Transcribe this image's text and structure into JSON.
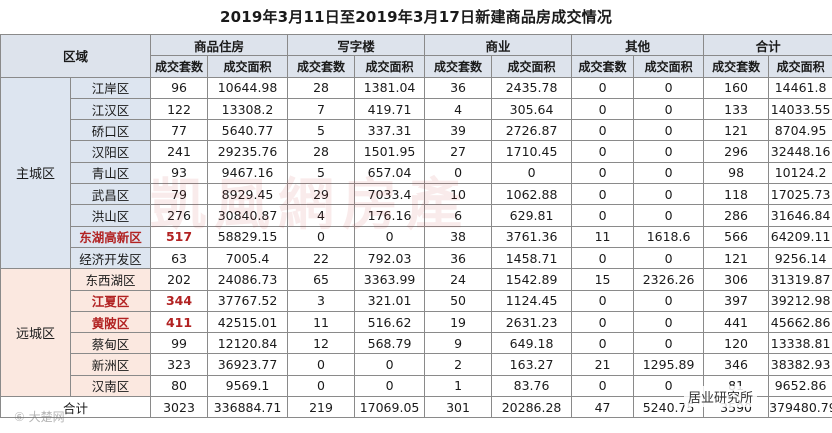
{
  "title": "2019年3月11日至2019年3月17日新建商品房成交情况",
  "header": {
    "region": "区域",
    "categories": [
      "商品住房",
      "写字楼",
      "商业",
      "其他",
      "合计"
    ],
    "sub": [
      "成交套数",
      "成交面积"
    ]
  },
  "groups": [
    {
      "name": "主城区",
      "rows": [
        {
          "district": "江岸区",
          "v": [
            "96",
            "10644.98",
            "28",
            "1381.04",
            "36",
            "2435.78",
            "0",
            "0",
            "160",
            "14461.8"
          ]
        },
        {
          "district": "江汉区",
          "v": [
            "122",
            "13308.2",
            "7",
            "419.71",
            "4",
            "305.64",
            "0",
            "0",
            "133",
            "14033.55"
          ]
        },
        {
          "district": "硚口区",
          "v": [
            "77",
            "5640.77",
            "5",
            "337.31",
            "39",
            "2726.87",
            "0",
            "0",
            "121",
            "8704.95"
          ]
        },
        {
          "district": "汉阳区",
          "v": [
            "241",
            "29235.76",
            "28",
            "1501.95",
            "27",
            "1710.45",
            "0",
            "0",
            "296",
            "32448.16"
          ]
        },
        {
          "district": "青山区",
          "v": [
            "93",
            "9467.16",
            "5",
            "657.04",
            "0",
            "0",
            "0",
            "0",
            "98",
            "10124.2"
          ]
        },
        {
          "district": "武昌区",
          "v": [
            "79",
            "8929.45",
            "29",
            "7033.4",
            "10",
            "1062.88",
            "0",
            "0",
            "118",
            "17025.73"
          ]
        },
        {
          "district": "洪山区",
          "v": [
            "276",
            "30840.87",
            "4",
            "176.16",
            "6",
            "629.81",
            "0",
            "0",
            "286",
            "31646.84"
          ]
        },
        {
          "district": "东湖高新区",
          "highlight": true,
          "v": [
            "517",
            "58829.15",
            "0",
            "0",
            "38",
            "3761.36",
            "11",
            "1618.6",
            "566",
            "64209.11"
          ]
        },
        {
          "district": "经济开发区",
          "v": [
            "63",
            "7005.4",
            "22",
            "792.03",
            "36",
            "1458.71",
            "0",
            "0",
            "121",
            "9256.14"
          ]
        }
      ]
    },
    {
      "name": "远城区",
      "rows": [
        {
          "district": "东西湖区",
          "v": [
            "202",
            "24086.73",
            "65",
            "3363.99",
            "24",
            "1542.89",
            "15",
            "2326.26",
            "306",
            "31319.87"
          ]
        },
        {
          "district": "江夏区",
          "highlight": true,
          "v": [
            "344",
            "37767.52",
            "3",
            "321.01",
            "50",
            "1124.45",
            "0",
            "0",
            "397",
            "39212.98"
          ]
        },
        {
          "district": "黄陂区",
          "highlight": true,
          "v": [
            "411",
            "42515.01",
            "11",
            "516.62",
            "19",
            "2631.23",
            "0",
            "0",
            "441",
            "45662.86"
          ]
        },
        {
          "district": "蔡甸区",
          "v": [
            "99",
            "12120.84",
            "12",
            "568.79",
            "9",
            "649.18",
            "0",
            "0",
            "120",
            "13338.81"
          ]
        },
        {
          "district": "新洲区",
          "v": [
            "323",
            "36923.77",
            "0",
            "0",
            "2",
            "163.27",
            "21",
            "1295.89",
            "346",
            "38382.93"
          ]
        },
        {
          "district": "汉南区",
          "v": [
            "80",
            "9569.1",
            "0",
            "0",
            "1",
            "83.76",
            "0",
            "0",
            "81",
            "9652.86"
          ]
        }
      ]
    }
  ],
  "total": {
    "label": "合计",
    "v": [
      "3023",
      "336884.71",
      "219",
      "17069.05",
      "301",
      "20286.28",
      "47",
      "5240.75",
      "3590",
      "379480.79"
    ]
  },
  "watermarks": {
    "center": "凱風網房產",
    "bottom_left": "⑥ 大楚网",
    "bottom_right": "居业研究所"
  }
}
